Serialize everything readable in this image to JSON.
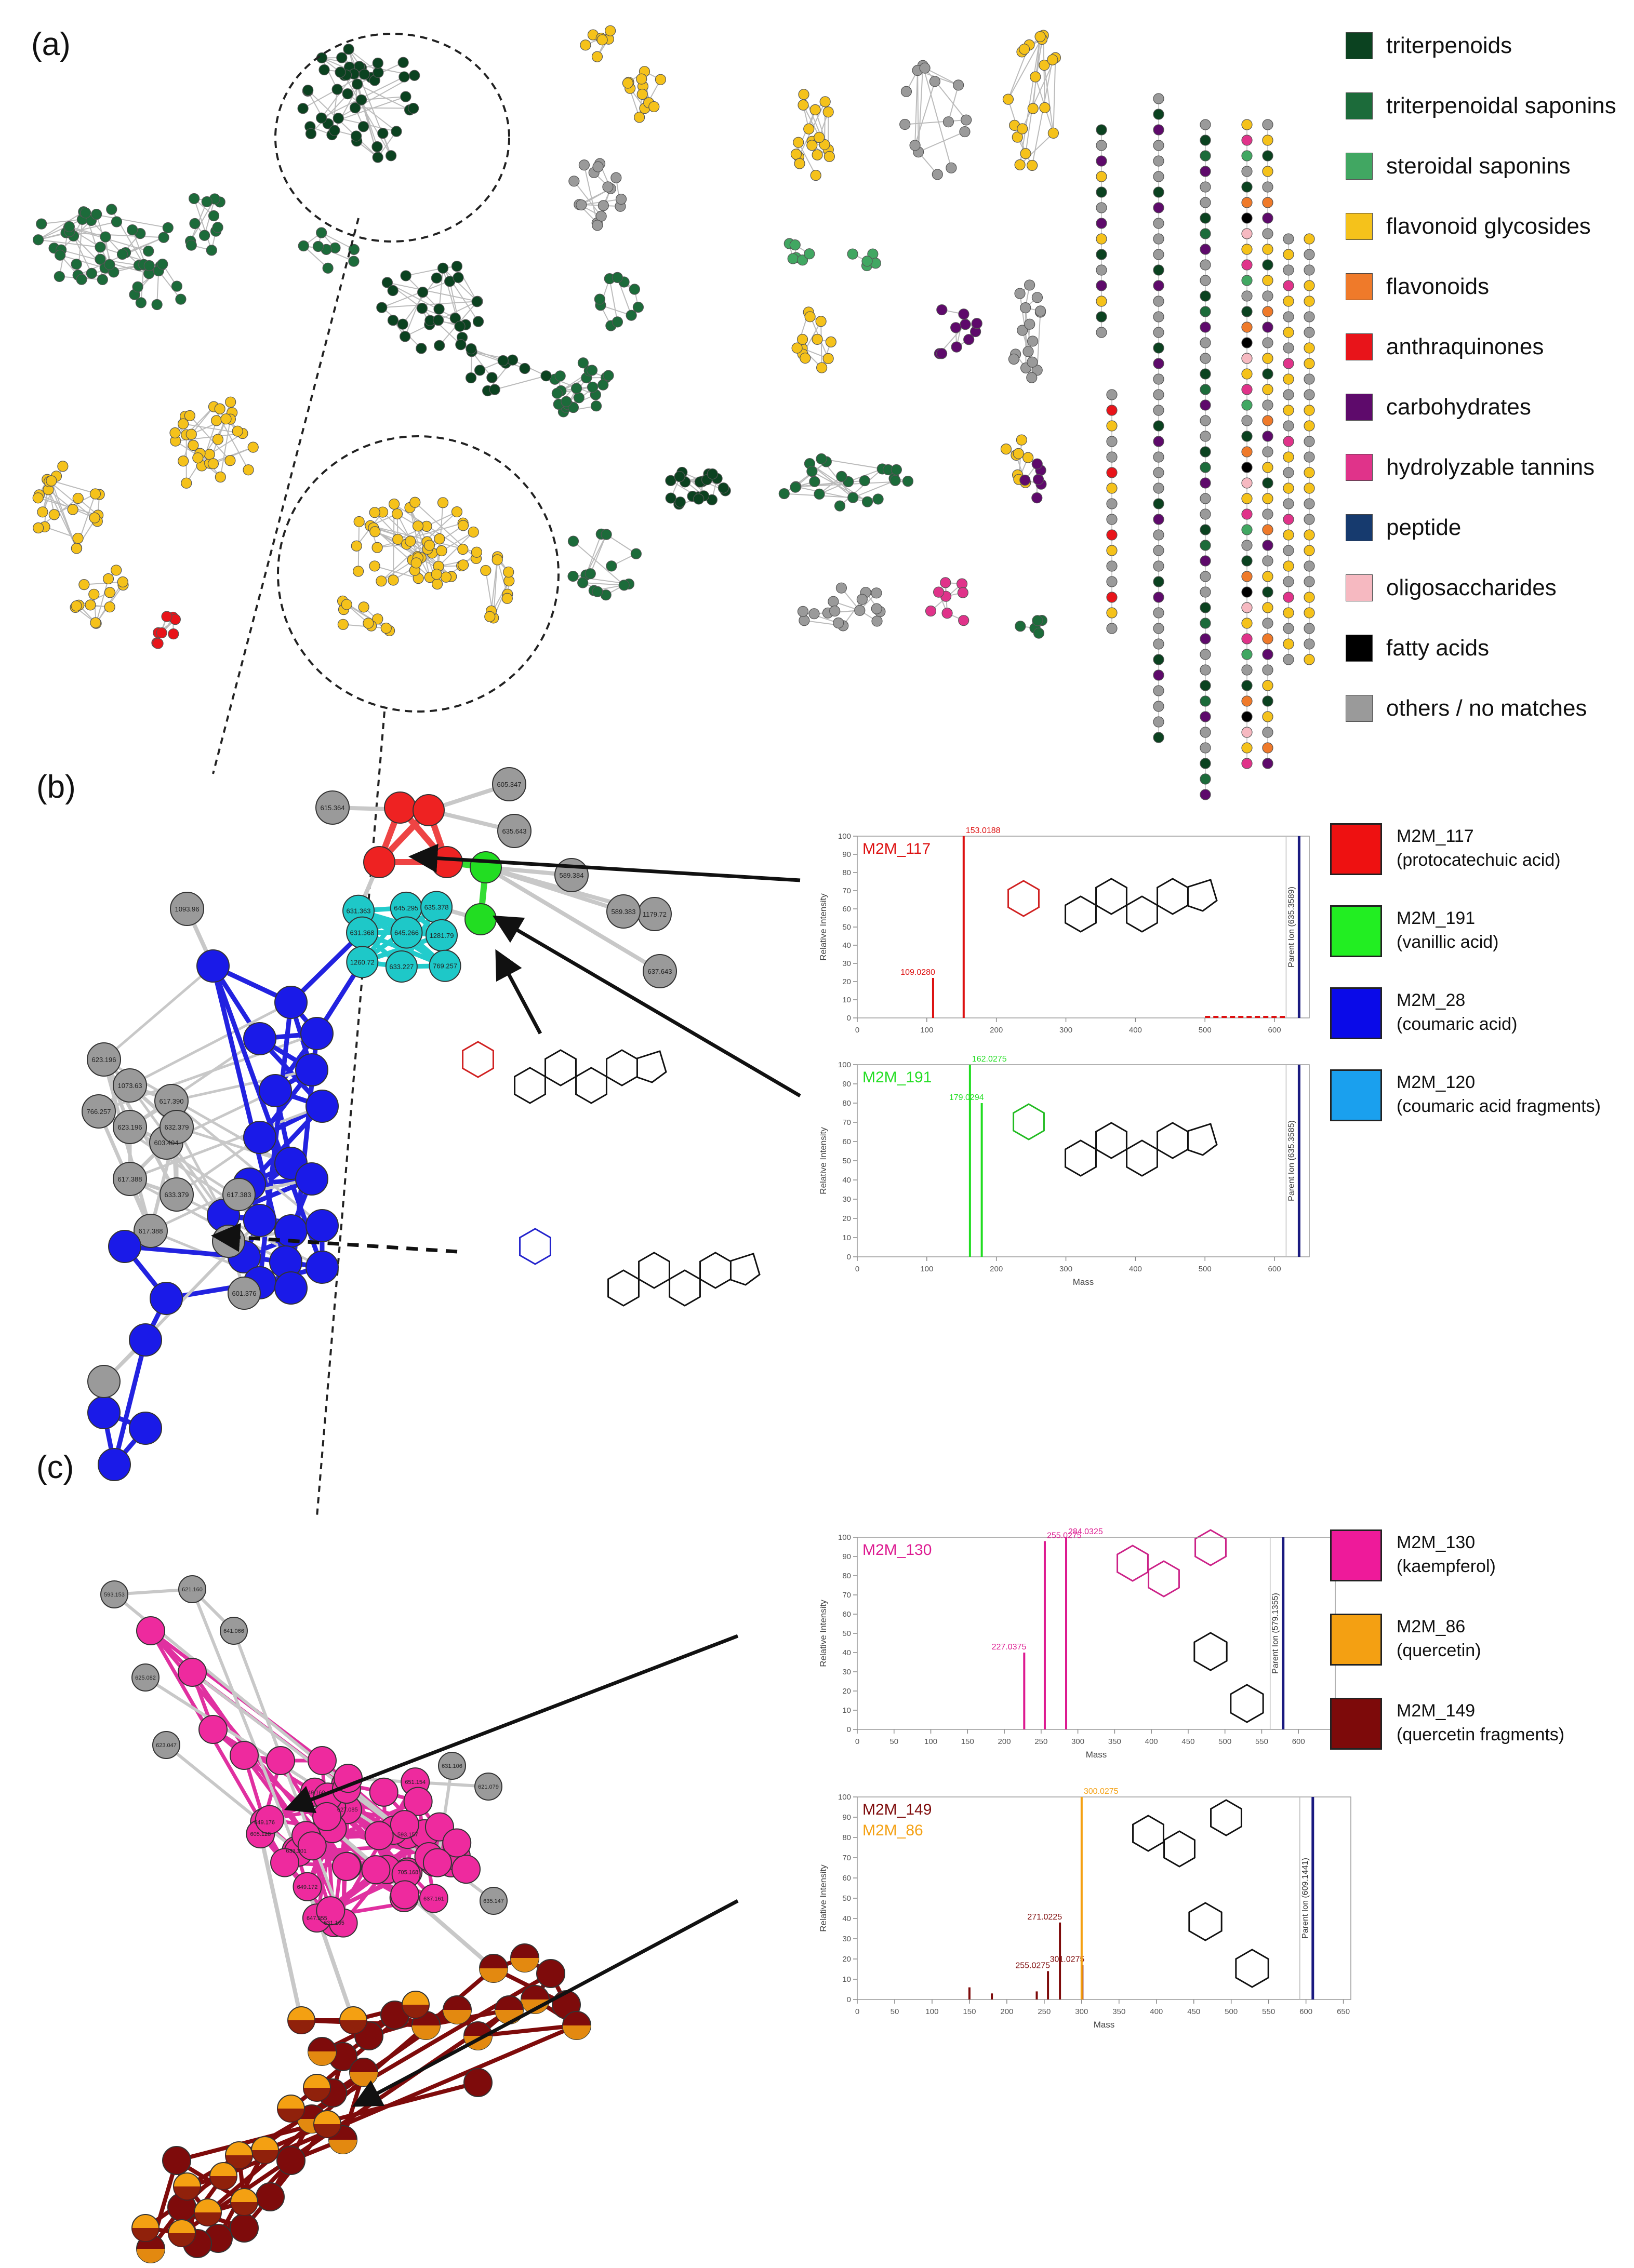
{
  "panels": {
    "a": "(a)",
    "b": "(b)",
    "c": "(c)"
  },
  "legend_a": [
    {
      "label": "triterpenoids",
      "color": "#0b4220"
    },
    {
      "label": "triterpenoidal saponins",
      "color": "#1c6b3a"
    },
    {
      "label": "steroidal saponins",
      "color": "#41a762"
    },
    {
      "label": "flavonoid glycosides",
      "color": "#f5c21b"
    },
    {
      "label": "flavonoids",
      "color": "#ef7a2a"
    },
    {
      "label": "anthraquinones",
      "color": "#e8141a"
    },
    {
      "label": "carbohydrates",
      "color": "#5e0a6b"
    },
    {
      "label": "hydrolyzable tannins",
      "color": "#e0338a"
    },
    {
      "label": "peptide",
      "color": "#163a6e"
    },
    {
      "label": "oligosaccharides",
      "color": "#f6b9c1"
    },
    {
      "label": "fatty acids",
      "color": "#000000"
    },
    {
      "label": "others / no matches",
      "color": "#9a9a9a"
    }
  ],
  "legend_b": [
    {
      "name": "M2M_117",
      "desc": "(protocatechuic acid)",
      "color": "#ee1111"
    },
    {
      "name": "M2M_191",
      "desc": "(vanillic acid)",
      "color": "#22ee22"
    },
    {
      "name": "M2M_28",
      "desc": "(coumaric acid)",
      "color": "#0a0ae8"
    },
    {
      "name": "M2M_120",
      "desc": "(coumaric acid fragments)",
      "color": "#1aa0ee"
    }
  ],
  "legend_c": [
    {
      "name": "M2M_130",
      "desc": "(kaempferol)",
      "color": "#ee1a9a"
    },
    {
      "name": "M2M_86",
      "desc": "(quercetin)",
      "color": "#f4a012"
    },
    {
      "name": "M2M_149",
      "desc": "(quercetin fragments)",
      "color": "#7d0a0a"
    }
  ],
  "node_labels_b": [
    "615.364",
    "605.347",
    "635.643",
    "589.384",
    "1179.72",
    "589.383",
    "637.643",
    "1093.96",
    "631.363",
    "645.295",
    "635.378",
    "631.368",
    "645.266",
    "1281.79",
    "1260.72",
    "633.227",
    "769.257",
    "623.196",
    "1073.63",
    "766.257",
    "623.196",
    "617.390",
    "603.404",
    "617.388",
    "633.379",
    "632.379",
    "617.388",
    "617.383",
    "601.376"
  ],
  "node_labels_c": [
    "593.153",
    "621.160",
    "641.066",
    "625.082",
    "623.047",
    "631.106",
    "621.079",
    "635.147",
    "593.157",
    "649.168",
    "649.176",
    "605.128",
    "631.165",
    "651.154",
    "705.168",
    "633.201",
    "649.172",
    "627.085",
    "637.161",
    "647.355"
  ],
  "chart_data": [
    {
      "type": "bar",
      "title": "M2M_117",
      "xlabel": "",
      "ylabel": "Relative Intensity",
      "xlim": [
        0,
        650
      ],
      "ylim": [
        0,
        100
      ],
      "xticks": [
        "0",
        "100",
        "200",
        "300",
        "400",
        "500",
        "600"
      ],
      "yticks": [
        "0",
        "10",
        "20",
        "30",
        "40",
        "50",
        "60",
        "70",
        "80",
        "90",
        "100"
      ],
      "peaks": [
        {
          "x": 109.028,
          "y": 22,
          "label": "109.0280"
        },
        {
          "x": 153.0188,
          "y": 100,
          "label": "153.0188"
        }
      ],
      "parent_ion": {
        "x": 635.3589,
        "label": "Parent Ion (635.3589)"
      },
      "dashed_range": [
        500,
        615
      ]
    },
    {
      "type": "bar",
      "title": "M2M_191",
      "xlabel": "Mass",
      "ylabel": "Relative Intensity",
      "xlim": [
        0,
        650
      ],
      "ylim": [
        0,
        100
      ],
      "xticks": [
        "0",
        "100",
        "200",
        "300",
        "400",
        "500",
        "600"
      ],
      "yticks": [
        "0",
        "10",
        "20",
        "30",
        "40",
        "50",
        "60",
        "70",
        "80",
        "90",
        "100"
      ],
      "peaks": [
        {
          "x": 162.0275,
          "y": 100,
          "label": "162.0275"
        },
        {
          "x": 179.0294,
          "y": 80,
          "label": "179.0294"
        }
      ],
      "parent_ion": {
        "x": 635.3585,
        "label": "Parent Ion (635.3585)"
      }
    },
    {
      "type": "bar",
      "title": "M2M_130",
      "xlabel": "Mass",
      "ylabel": "Relative Intensity",
      "xlim": [
        0,
        650
      ],
      "ylim": [
        0,
        100
      ],
      "xticks": [
        "0",
        "50",
        "100",
        "150",
        "200",
        "250",
        "300",
        "350",
        "400",
        "450",
        "500",
        "550",
        "600"
      ],
      "yticks": [
        "0",
        "10",
        "20",
        "30",
        "40",
        "50",
        "60",
        "70",
        "80",
        "90",
        "100"
      ],
      "peaks": [
        {
          "x": 227.0375,
          "y": 40,
          "label": "227.0375"
        },
        {
          "x": 255.0275,
          "y": 98,
          "label": "255.0275"
        },
        {
          "x": 284.0325,
          "y": 100,
          "label": "284.0325"
        }
      ],
      "parent_ion": {
        "x": 579.1355,
        "label": "Parent Ion (579.1355)"
      }
    },
    {
      "type": "bar",
      "title": "M2M_149",
      "title2": "M2M_86",
      "xlabel": "Mass",
      "ylabel": "Relative Intensity",
      "xlim": [
        0,
        660
      ],
      "ylim": [
        0,
        100
      ],
      "xticks": [
        "0",
        "50",
        "100",
        "150",
        "200",
        "250",
        "300",
        "350",
        "400",
        "450",
        "500",
        "550",
        "600",
        "650"
      ],
      "yticks": [
        "0",
        "10",
        "20",
        "30",
        "40",
        "50",
        "60",
        "70",
        "80",
        "90",
        "100"
      ],
      "peaks": [
        {
          "x": 150,
          "y": 6,
          "label": ""
        },
        {
          "x": 180,
          "y": 3,
          "label": ""
        },
        {
          "x": 240,
          "y": 4,
          "label": ""
        },
        {
          "x": 255.0275,
          "y": 14,
          "label": "255.0275"
        },
        {
          "x": 271.0225,
          "y": 38,
          "label": "271.0225"
        },
        {
          "x": 301.0275,
          "y": 17,
          "label": "301.0275"
        }
      ],
      "peaks2": [
        {
          "x": 300.0275,
          "y": 100,
          "label": "300.0275"
        }
      ],
      "parent_ion": {
        "x": 609.1441,
        "label": "Parent Ion (609.1441)"
      }
    }
  ],
  "colors": {
    "tri": "#0b4220",
    "sap": "#1c6b3a",
    "ster": "#41a762",
    "fg": "#f5c21b",
    "flav": "#ef7a2a",
    "anth": "#e8141a",
    "carb": "#5e0a6b",
    "tann": "#e0338a",
    "pep": "#163a6e",
    "olig": "#f6b9c1",
    "fat": "#000000",
    "grey": "#9a9a9a"
  }
}
